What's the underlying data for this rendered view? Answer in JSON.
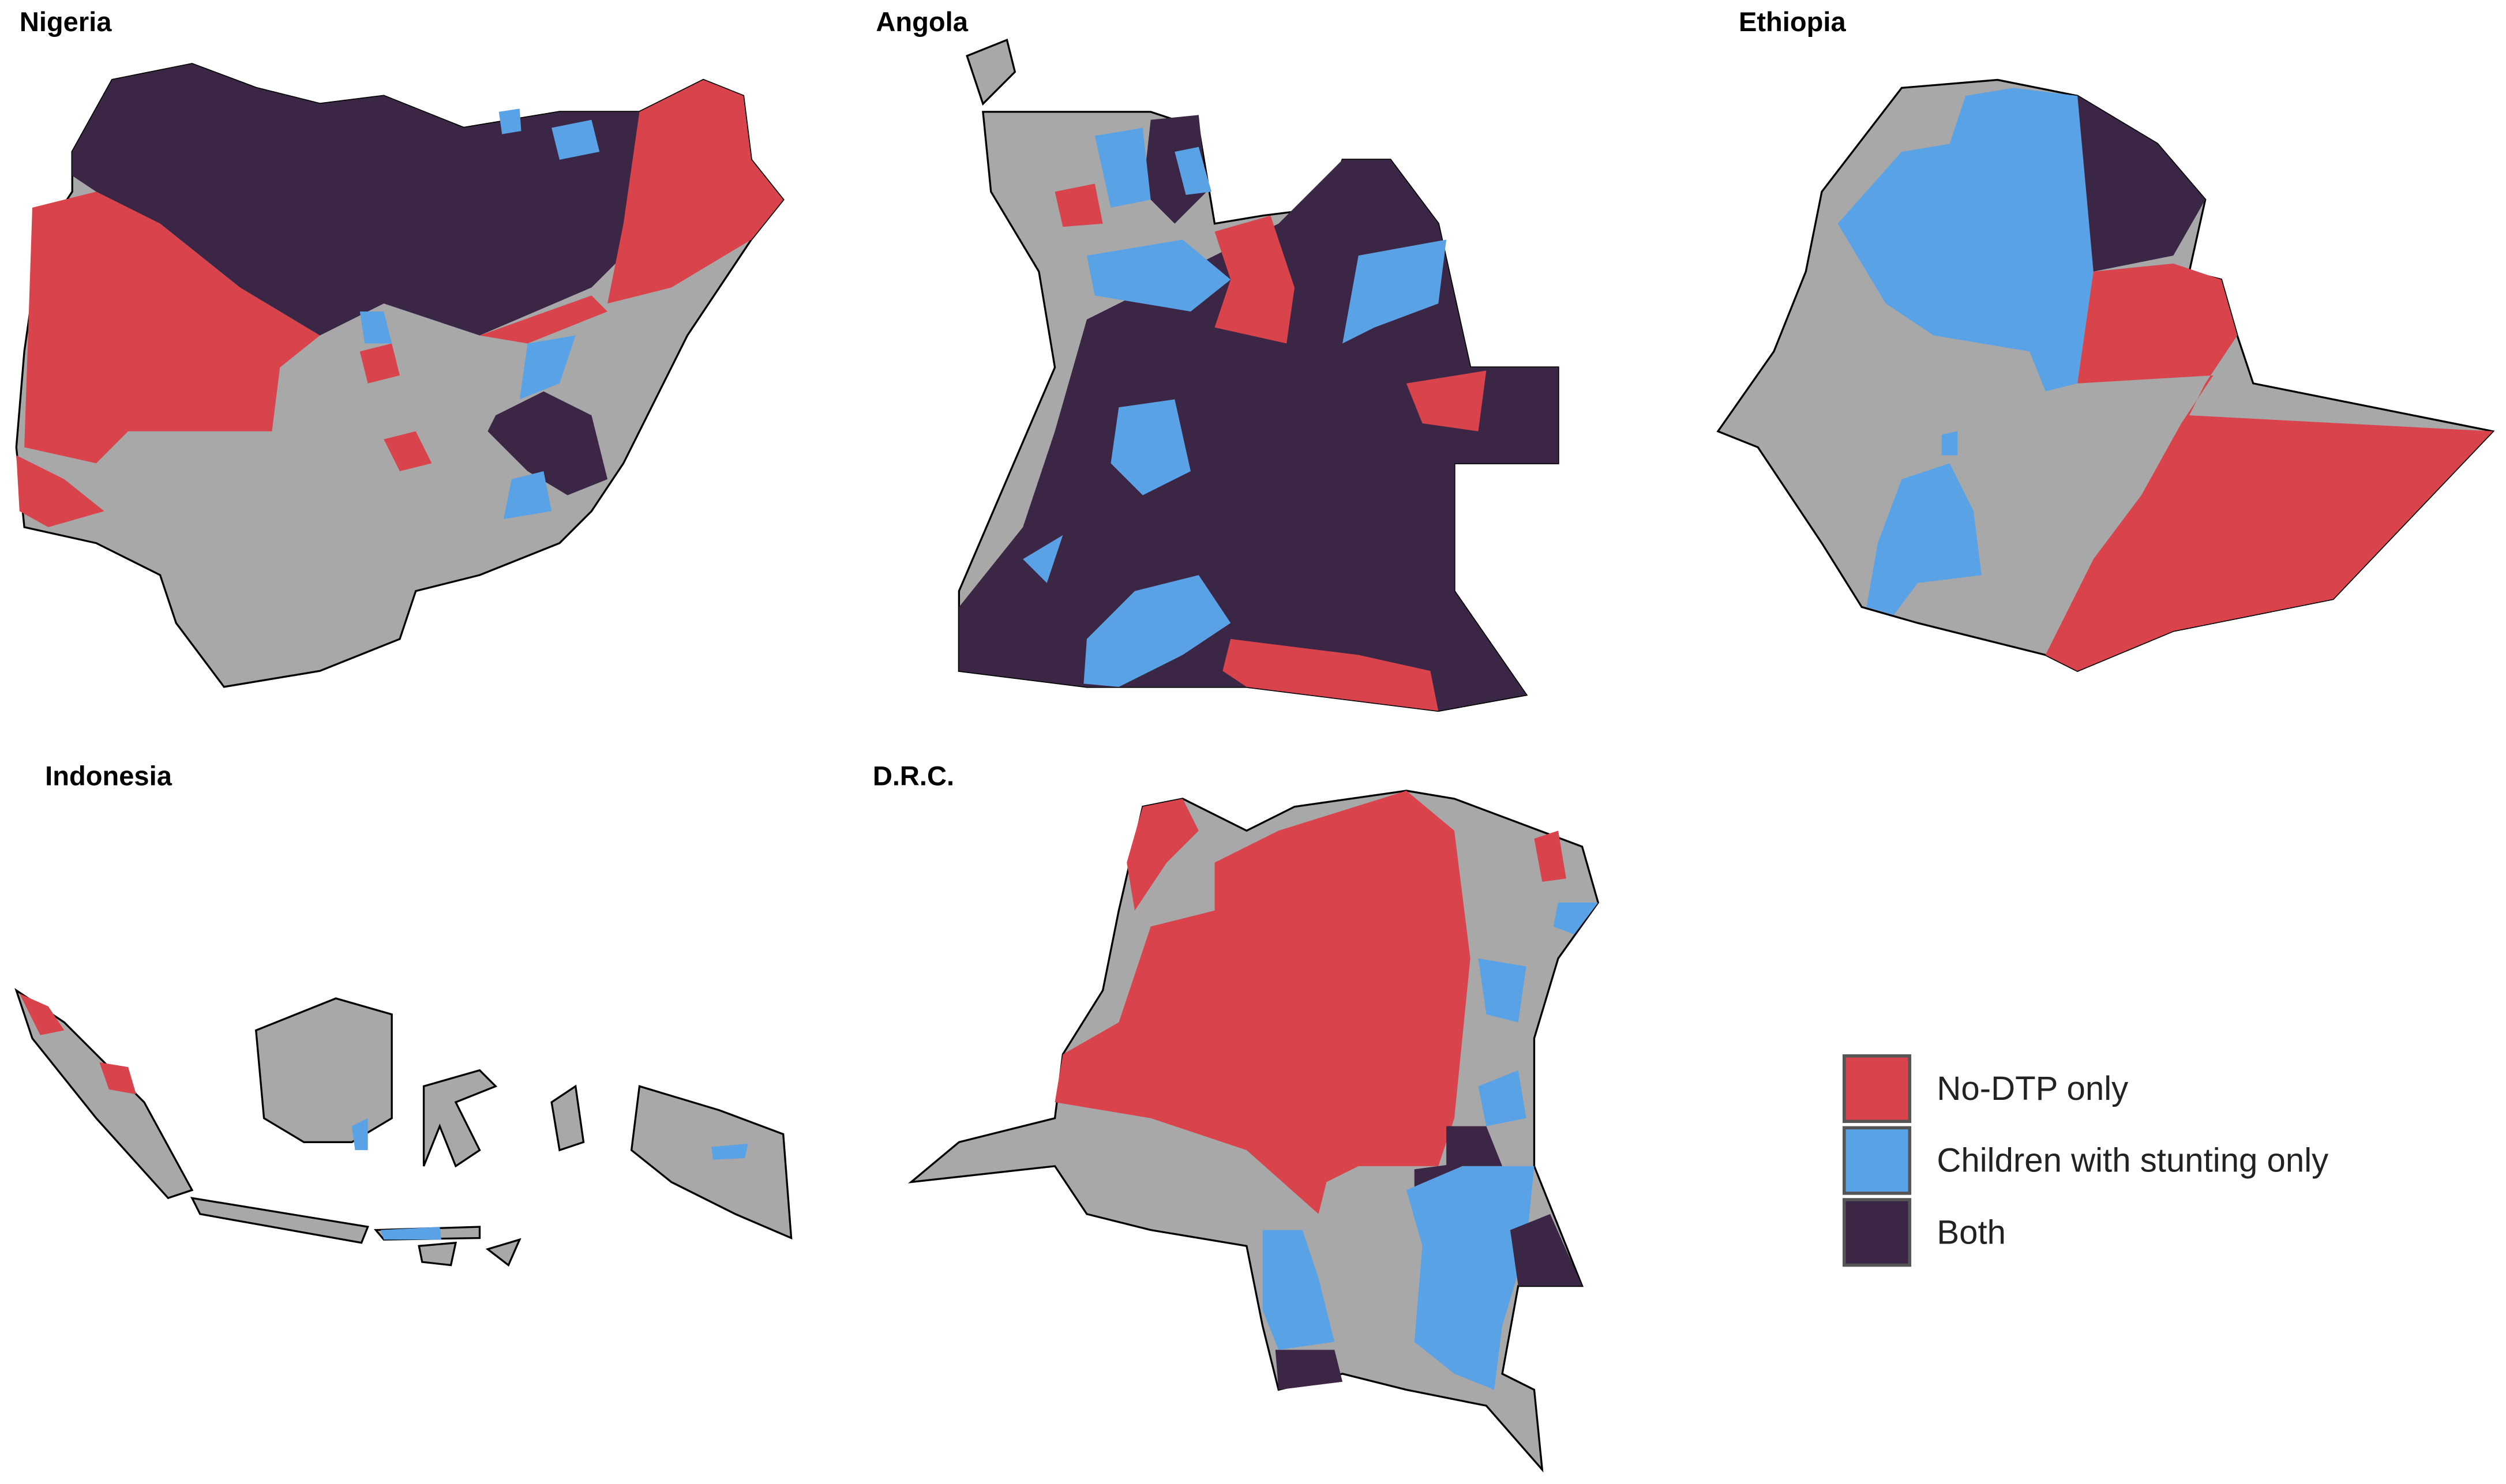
{
  "panels": [
    {
      "title": "Nigeria"
    },
    {
      "title": "Angola"
    },
    {
      "title": "Ethiopia"
    },
    {
      "title": "Indonesia"
    },
    {
      "title": "D.R.C."
    }
  ],
  "legend": {
    "items": [
      {
        "label": "No-DTP only",
        "color": "#d9434b"
      },
      {
        "label": "Children with stunting only",
        "color": "#5aa2e6"
      },
      {
        "label": "Both",
        "color": "#3b2745"
      }
    ]
  }
}
